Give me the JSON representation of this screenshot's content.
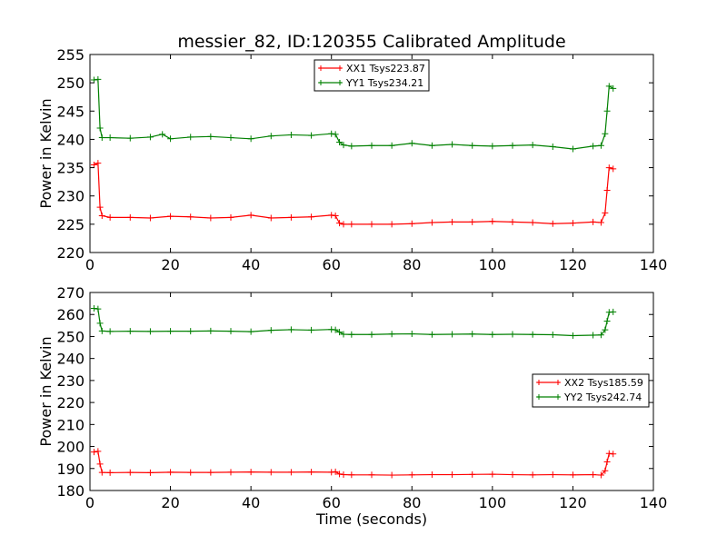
{
  "chart_data": [
    {
      "type": "line",
      "title": "messier_82, ID:120355 Calibrated Amplitude",
      "xlabel": "",
      "ylabel": "Power in Kelvin",
      "xlim": [
        0,
        140
      ],
      "ylim": [
        220,
        255
      ],
      "xticks": [
        0,
        20,
        40,
        60,
        80,
        100,
        120,
        140
      ],
      "yticks": [
        220,
        225,
        230,
        235,
        240,
        245,
        250,
        255
      ],
      "grid": false,
      "legend_position": "top-center",
      "series": [
        {
          "name": "XX1 Tsys223.87",
          "color": "#ff0000",
          "marker": "plus",
          "x": [
            1,
            2,
            2.5,
            3,
            5,
            10,
            15,
            20,
            25,
            30,
            35,
            40,
            45,
            50,
            55,
            60,
            61,
            62,
            63,
            65,
            70,
            75,
            80,
            85,
            90,
            95,
            100,
            105,
            110,
            115,
            120,
            125,
            127,
            128,
            128.5,
            129,
            130
          ],
          "y": [
            235.5,
            235.8,
            228,
            226.5,
            226.2,
            226.2,
            226.1,
            226.4,
            226.3,
            226.1,
            226.2,
            226.6,
            226.1,
            226.2,
            226.3,
            226.6,
            226.5,
            225.2,
            225.0,
            225.0,
            225.0,
            225.0,
            225.1,
            225.3,
            225.4,
            225.4,
            225.5,
            225.4,
            225.3,
            225.1,
            225.2,
            225.4,
            225.3,
            227,
            231,
            235.0,
            234.8
          ]
        },
        {
          "name": "YY1 Tsys234.21",
          "color": "#008000",
          "marker": "plus",
          "x": [
            1,
            2,
            2.5,
            3,
            5,
            10,
            15,
            18,
            20,
            25,
            30,
            35,
            40,
            45,
            50,
            55,
            60,
            61,
            62,
            63,
            65,
            70,
            75,
            80,
            85,
            90,
            95,
            100,
            105,
            110,
            115,
            120,
            125,
            127,
            128,
            128.5,
            129,
            130
          ],
          "y": [
            250.5,
            250.6,
            242,
            240.3,
            240.3,
            240.2,
            240.4,
            240.9,
            240.1,
            240.4,
            240.5,
            240.3,
            240.1,
            240.6,
            240.8,
            240.7,
            241.0,
            240.9,
            239.5,
            239.0,
            238.8,
            238.9,
            238.9,
            239.3,
            238.9,
            239.1,
            238.9,
            238.8,
            238.9,
            239.0,
            238.7,
            238.3,
            238.8,
            238.9,
            241,
            245,
            249.4,
            249.0
          ]
        }
      ]
    },
    {
      "type": "line",
      "title": "",
      "xlabel": "Time (seconds)",
      "ylabel": "Power in Kelvin",
      "xlim": [
        0,
        140
      ],
      "ylim": [
        180,
        270
      ],
      "xticks": [
        0,
        20,
        40,
        60,
        80,
        100,
        120,
        140
      ],
      "yticks": [
        180,
        190,
        200,
        210,
        220,
        230,
        240,
        250,
        260,
        270
      ],
      "grid": false,
      "legend_position": "center-right",
      "series": [
        {
          "name": "XX2 Tsys185.59",
          "color": "#ff0000",
          "marker": "plus",
          "x": [
            1,
            2,
            2.5,
            3,
            5,
            10,
            15,
            20,
            25,
            30,
            35,
            40,
            45,
            50,
            55,
            60,
            61,
            62,
            63,
            65,
            70,
            75,
            80,
            85,
            90,
            95,
            100,
            105,
            110,
            115,
            120,
            125,
            127,
            128,
            128.5,
            129,
            130
          ],
          "y": [
            197.5,
            197.8,
            192,
            188.2,
            188.1,
            188.2,
            188.1,
            188.3,
            188.2,
            188.2,
            188.3,
            188.4,
            188.3,
            188.3,
            188.4,
            188.3,
            188.5,
            187.5,
            187.2,
            187.1,
            187.1,
            187.0,
            187.1,
            187.2,
            187.2,
            187.3,
            187.4,
            187.2,
            187.1,
            187.2,
            187.1,
            187.2,
            187.0,
            189,
            193,
            196.8,
            196.6
          ]
        },
        {
          "name": "YY2 Tsys242.74",
          "color": "#008000",
          "marker": "plus",
          "x": [
            1,
            2,
            2.5,
            3,
            5,
            10,
            15,
            20,
            25,
            30,
            35,
            40,
            45,
            50,
            55,
            60,
            61,
            62,
            63,
            65,
            70,
            75,
            80,
            85,
            90,
            95,
            100,
            105,
            110,
            115,
            120,
            125,
            127,
            128,
            128.5,
            129,
            130
          ],
          "y": [
            262.8,
            262.5,
            256,
            252.5,
            252.3,
            252.4,
            252.3,
            252.4,
            252.4,
            252.5,
            252.4,
            252.2,
            252.8,
            253.1,
            252.9,
            253.2,
            253.0,
            252.0,
            251.0,
            250.9,
            250.9,
            251.1,
            251.2,
            250.9,
            251.0,
            251.1,
            250.9,
            251.0,
            250.9,
            250.8,
            250.4,
            250.6,
            250.7,
            253,
            257,
            261.0,
            261.2
          ]
        }
      ]
    }
  ]
}
